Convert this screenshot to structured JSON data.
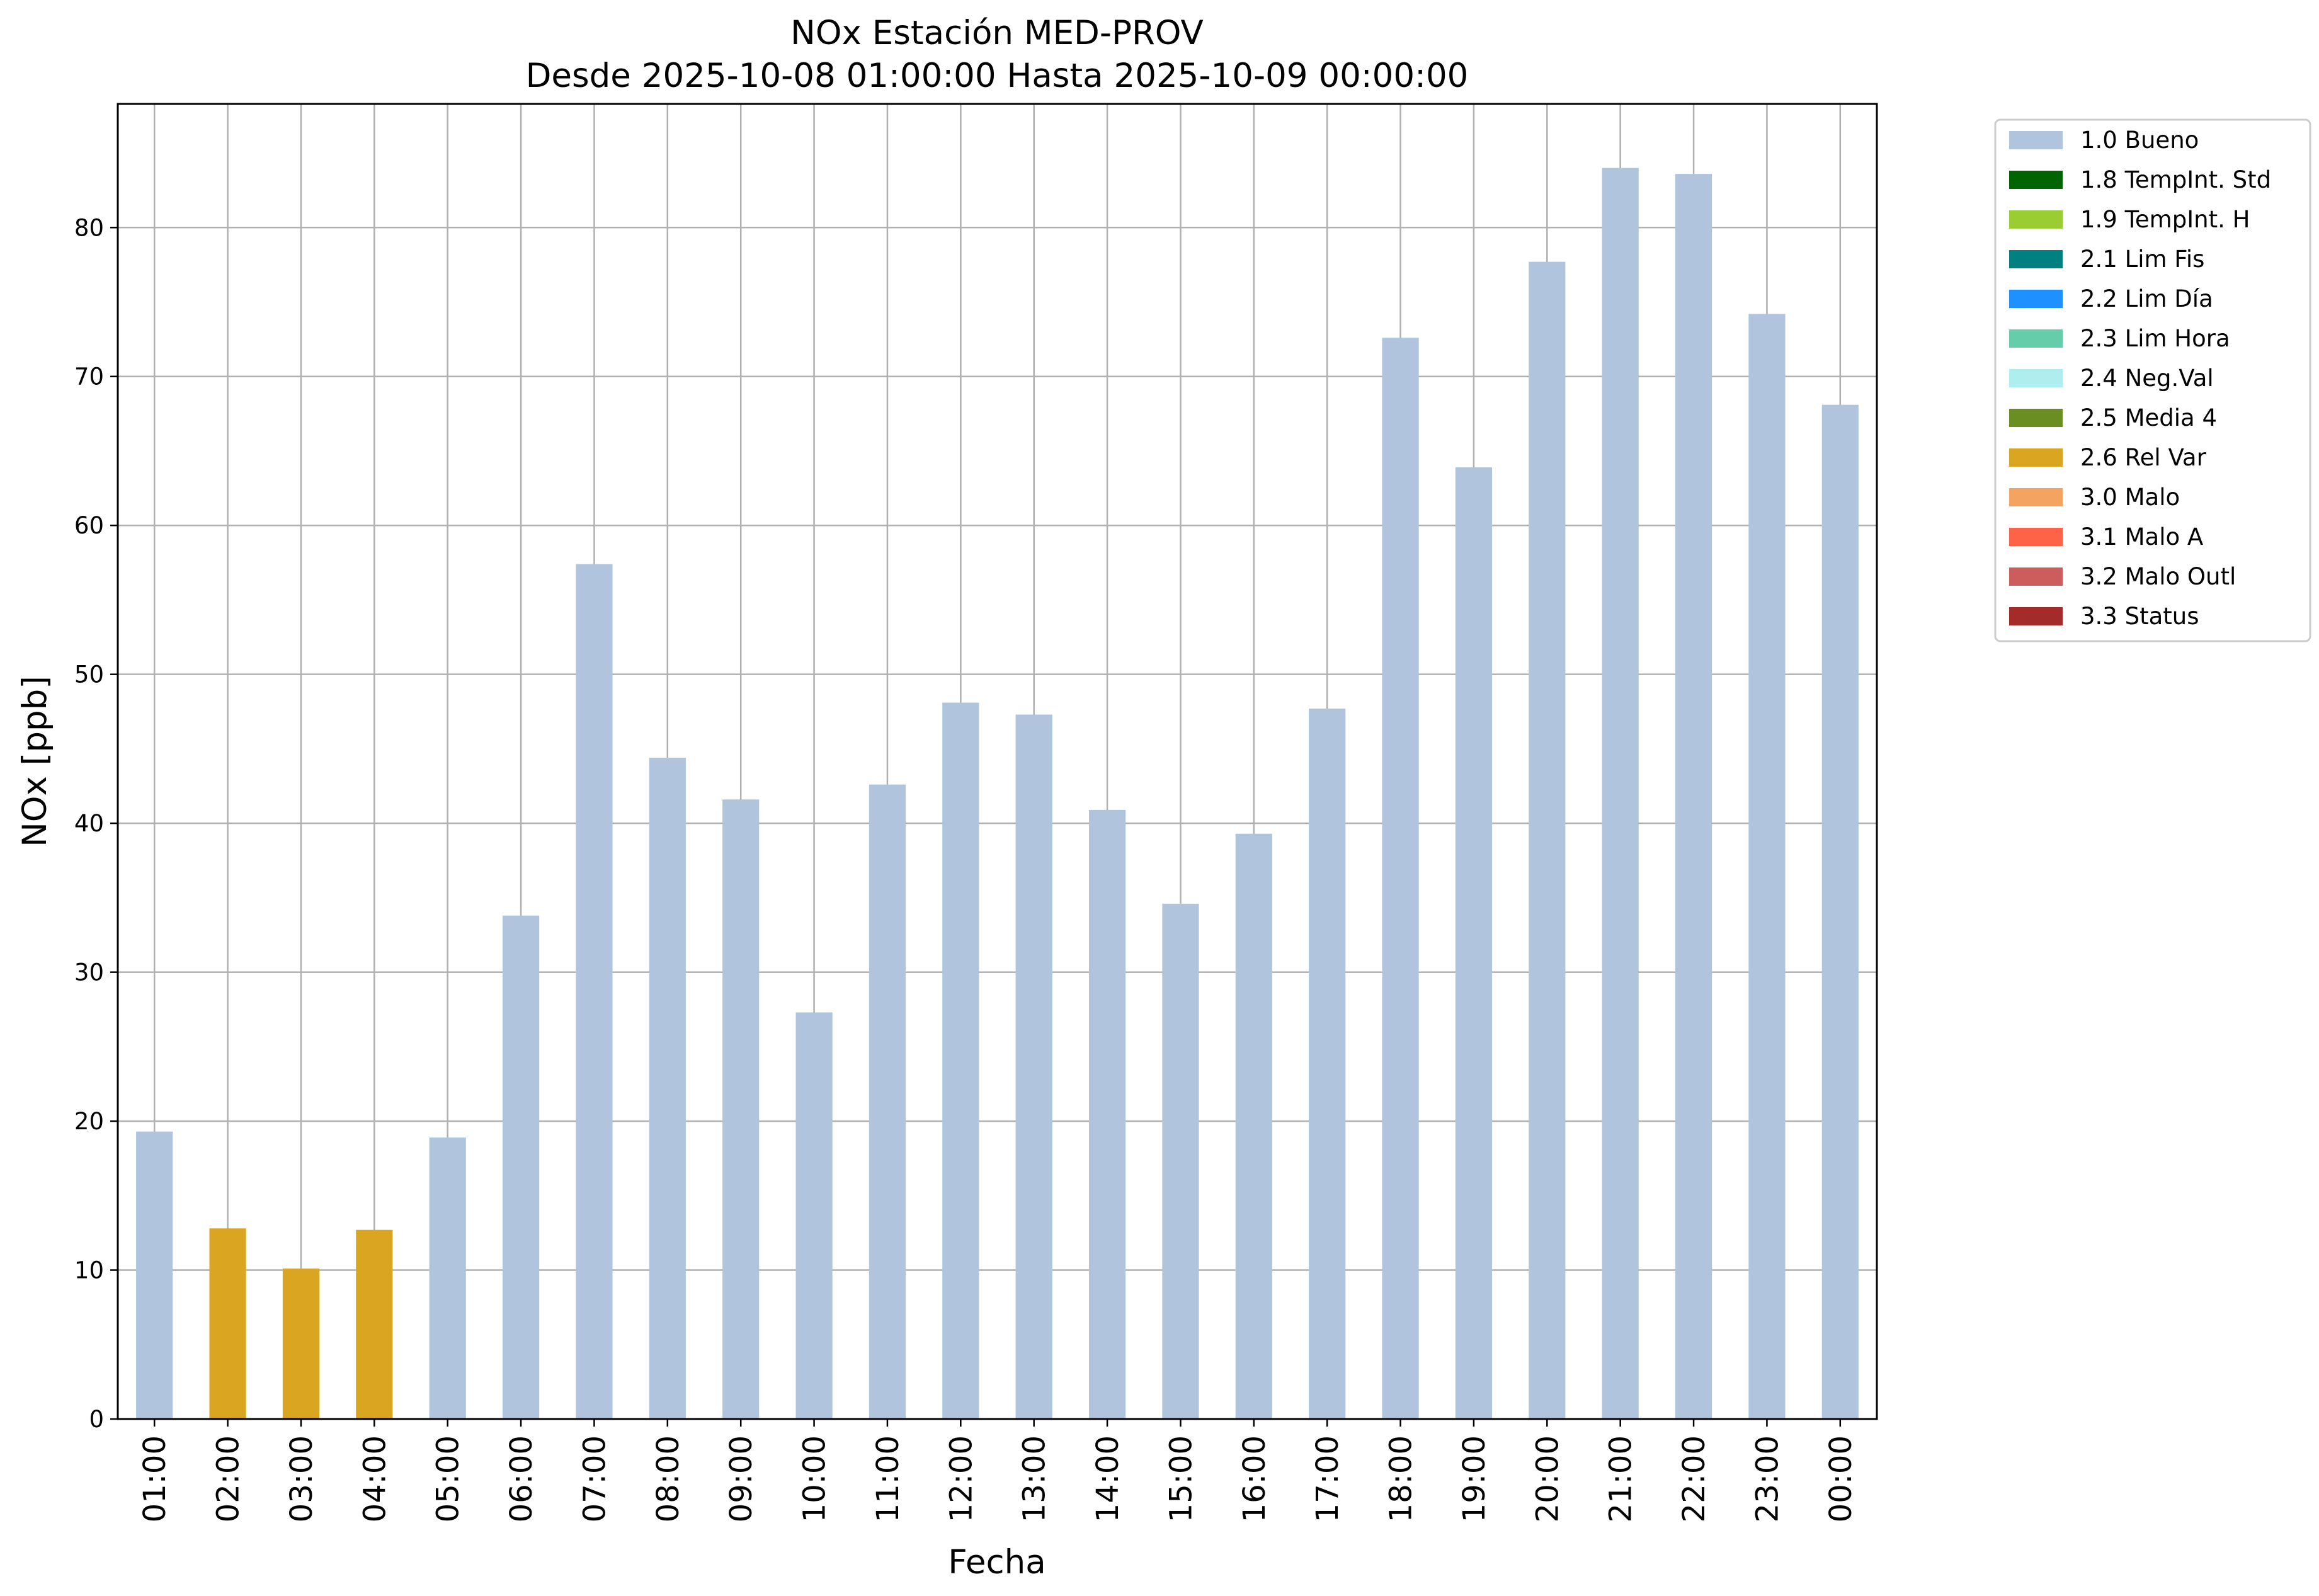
{
  "chart_data": {
    "type": "bar",
    "title": "NOx Estación MED-PROV",
    "subtitle": "Desde 2025-10-08 01:00:00 Hasta 2025-10-09 00:00:00",
    "xlabel": "Fecha",
    "ylabel": "NOx [ppb]",
    "ylim": [
      0,
      88.3
    ],
    "yticks": [
      0,
      10,
      20,
      30,
      40,
      50,
      60,
      70,
      80
    ],
    "grid": true,
    "legend_position": "outside-top-right",
    "categories": [
      "01:00",
      "02:00",
      "03:00",
      "04:00",
      "05:00",
      "06:00",
      "07:00",
      "08:00",
      "09:00",
      "10:00",
      "11:00",
      "12:00",
      "13:00",
      "14:00",
      "15:00",
      "16:00",
      "17:00",
      "18:00",
      "19:00",
      "20:00",
      "21:00",
      "22:00",
      "23:00",
      "00:00"
    ],
    "values": [
      19.3,
      12.8,
      10.1,
      12.7,
      18.9,
      33.8,
      57.4,
      44.4,
      41.6,
      27.3,
      42.6,
      48.1,
      47.3,
      40.9,
      34.6,
      39.3,
      47.7,
      72.6,
      63.9,
      77.7,
      84.0,
      83.6,
      74.2,
      68.1
    ],
    "flags": [
      "1.0 Bueno",
      "2.6 Rel Var",
      "2.6 Rel Var",
      "2.6 Rel Var",
      "1.0 Bueno",
      "1.0 Bueno",
      "1.0 Bueno",
      "1.0 Bueno",
      "1.0 Bueno",
      "1.0 Bueno",
      "1.0 Bueno",
      "1.0 Bueno",
      "1.0 Bueno",
      "1.0 Bueno",
      "1.0 Bueno",
      "1.0 Bueno",
      "1.0 Bueno",
      "1.0 Bueno",
      "1.0 Bueno",
      "1.0 Bueno",
      "1.0 Bueno",
      "1.0 Bueno",
      "1.0 Bueno",
      "1.0 Bueno"
    ],
    "legend": [
      {
        "label": "1.0 Bueno",
        "color": "#b0c4de"
      },
      {
        "label": "1.8 TempInt. Std",
        "color": "#006400"
      },
      {
        "label": "1.9 TempInt. H",
        "color": "#9acd32"
      },
      {
        "label": "2.1 Lim Fis",
        "color": "#008080"
      },
      {
        "label": "2.2 Lim Día",
        "color": "#1e90ff"
      },
      {
        "label": "2.3 Lim Hora",
        "color": "#66cdaa"
      },
      {
        "label": "2.4 Neg.Val",
        "color": "#afeeee"
      },
      {
        "label": "2.5 Media 4",
        "color": "#6b8e23"
      },
      {
        "label": "2.6 Rel Var",
        "color": "#daa520"
      },
      {
        "label": "3.0 Malo",
        "color": "#f4a460"
      },
      {
        "label": "3.1 Malo A",
        "color": "#ff6347"
      },
      {
        "label": "3.2 Malo Outl",
        "color": "#cd5c5c"
      },
      {
        "label": "3.3 Status",
        "color": "#a52a2a"
      }
    ]
  }
}
